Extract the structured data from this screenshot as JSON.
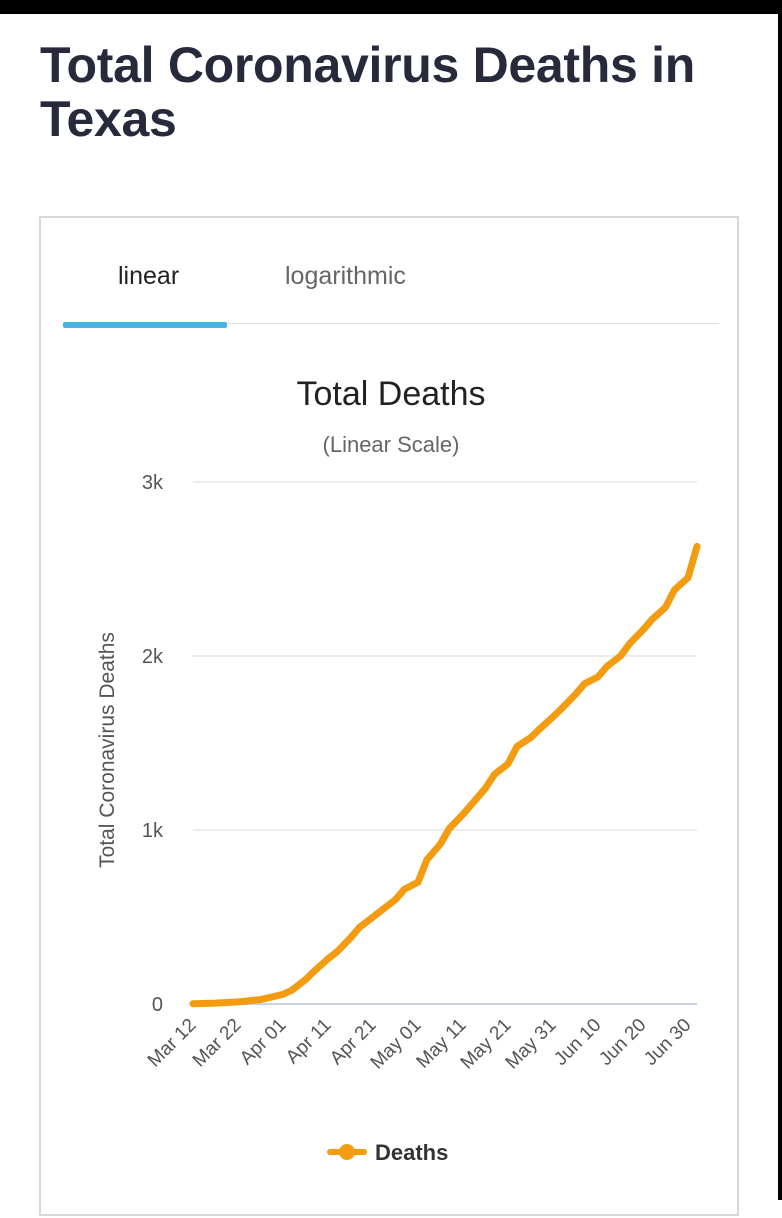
{
  "page": {
    "title": "Total Coronavirus Deaths in Texas"
  },
  "tabs": [
    {
      "label": "linear",
      "active": true
    },
    {
      "label": "logarithmic",
      "active": false
    }
  ],
  "colors": {
    "line": "#f39c12",
    "tab_indicator": "#41b7e3",
    "gridline": "#e0e0e0",
    "axis": "#c8d3e3"
  },
  "chart_data": {
    "type": "line",
    "title": "Total Deaths",
    "subtitle": "(Linear Scale)",
    "ylabel": "Total Coronavirus Deaths",
    "xlabel": "",
    "ylim": [
      0,
      3000
    ],
    "y_ticks": [
      {
        "value": 0,
        "label": "0"
      },
      {
        "value": 1000,
        "label": "1k"
      },
      {
        "value": 2000,
        "label": "2k"
      },
      {
        "value": 3000,
        "label": "3k"
      }
    ],
    "x_ticks": [
      "Mar 12",
      "Mar 22",
      "Apr 01",
      "Apr 11",
      "Apr 21",
      "May 01",
      "May 11",
      "May 21",
      "May 31",
      "Jun 10",
      "Jun 20",
      "Jun 30"
    ],
    "grid": true,
    "legend_position": "bottom-center",
    "series": [
      {
        "name": "Deaths",
        "x": [
          "Mar 12",
          "Mar 17",
          "Mar 22",
          "Mar 27",
          "Apr 01",
          "Apr 03",
          "Apr 06",
          "Apr 08",
          "Apr 11",
          "Apr 13",
          "Apr 16",
          "Apr 18",
          "Apr 21",
          "Apr 23",
          "Apr 26",
          "Apr 28",
          "May 01",
          "May 03",
          "May 06",
          "May 08",
          "May 11",
          "May 13",
          "May 16",
          "May 18",
          "May 21",
          "May 23",
          "May 26",
          "May 28",
          "May 31",
          "Jun 02",
          "Jun 05",
          "Jun 07",
          "Jun 10",
          "Jun 12",
          "Jun 15",
          "Jun 17",
          "Jun 20",
          "Jun 22",
          "Jun 25",
          "Jun 27",
          "Jun 30",
          "Jul 02"
        ],
        "values": [
          2,
          5,
          12,
          25,
          55,
          80,
          140,
          190,
          260,
          300,
          380,
          440,
          500,
          540,
          600,
          660,
          700,
          830,
          920,
          1010,
          1090,
          1150,
          1240,
          1320,
          1380,
          1480,
          1530,
          1580,
          1650,
          1700,
          1780,
          1840,
          1880,
          1940,
          2000,
          2070,
          2150,
          2210,
          2280,
          2380,
          2450,
          2630
        ]
      }
    ]
  }
}
